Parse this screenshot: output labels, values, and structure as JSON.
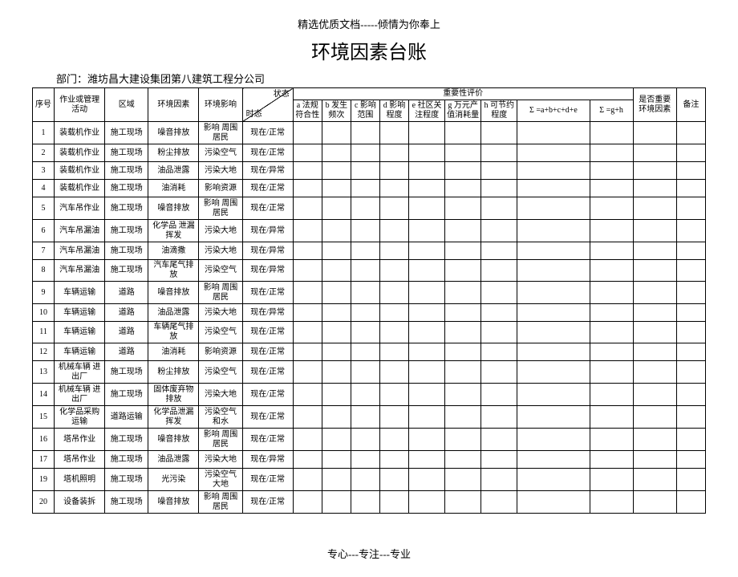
{
  "header_text": "精选优质文档-----倾情为你奉上",
  "title": "环境因素台账",
  "dept_label": "部门：潍坊昌大建设集团第八建筑工程分公司",
  "footer_text": "专心---专注---专业",
  "columns": {
    "seq": "序号",
    "activity": "作业或管理活动",
    "area": "区域",
    "factor": "环境因素",
    "impact": "环境影响",
    "state_top": "状态",
    "state_bottom": "时态",
    "importance": "重要性评价",
    "a": "a\n法规符合性",
    "b": "b\n发生频次",
    "c": "c\n影响范围",
    "d": "d\n影响程度",
    "e": "e\n社区关注程度",
    "g": "g\n万元产值消耗量",
    "h": "h\n可节约程度",
    "sigma1": "Σ\n=a+b+c+d+e",
    "sigma2": "Σ\n=g+h",
    "is_important": "是否重要环境因素",
    "remark": "备注"
  },
  "rows": [
    {
      "n": "1",
      "act": "装载机作业",
      "area": "施工现场",
      "factor": "噪音排放",
      "impact": "影响\n周围居民",
      "state": "现在/正常"
    },
    {
      "n": "2",
      "act": "装载机作业",
      "area": "施工现场",
      "factor": "粉尘排放",
      "impact": "污染空气",
      "state": "现在/正常"
    },
    {
      "n": "3",
      "act": "装载机作业",
      "area": "施工现场",
      "factor": "油品泄露",
      "impact": "污染大地",
      "state": "现在/异常"
    },
    {
      "n": "4",
      "act": "装载机作业",
      "area": "施工现场",
      "factor": "油消耗",
      "impact": "影响资源",
      "state": "现在/正常"
    },
    {
      "n": "5",
      "act": "汽车吊作业",
      "area": "施工现场",
      "factor": "噪音排放",
      "impact": "影响\n周围居民",
      "state": "现在/正常"
    },
    {
      "n": "6",
      "act": "汽车吊漏油",
      "area": "施工现场",
      "factor": "化学品\n泄漏挥发",
      "impact": "污染大地",
      "state": "现在/异常"
    },
    {
      "n": "7",
      "act": "汽车吊漏油",
      "area": "施工现场",
      "factor": "油滴撒",
      "impact": "污染大地",
      "state": "现在/异常"
    },
    {
      "n": "8",
      "act": "汽车吊漏油",
      "area": "施工现场",
      "factor": "汽车尾气排放",
      "impact": "污染空气",
      "state": "现在/异常"
    },
    {
      "n": "9",
      "act": "车辆运输",
      "area": "道路",
      "factor": "噪音排放",
      "impact": "影响\n周围居民",
      "state": "现在/正常"
    },
    {
      "n": "10",
      "act": "车辆运输",
      "area": "道路",
      "factor": "油品泄露",
      "impact": "污染大地",
      "state": "现在/异常"
    },
    {
      "n": "11",
      "act": "车辆运输",
      "area": "道路",
      "factor": "车辆尾气排放",
      "impact": "污染空气",
      "state": "现在/正常"
    },
    {
      "n": "12",
      "act": "车辆运输",
      "area": "道路",
      "factor": "油消耗",
      "impact": "影响资源",
      "state": "现在/正常"
    },
    {
      "n": "13",
      "act": "机械车辆\n进出厂",
      "area": "施工现场",
      "factor": "粉尘排放",
      "impact": "污染空气",
      "state": "现在/正常"
    },
    {
      "n": "14",
      "act": "机械车辆\n进出厂",
      "area": "施工现场",
      "factor": "固体废弃物\n排放",
      "impact": "污染大地",
      "state": "现在/正常"
    },
    {
      "n": "15",
      "act": "化学品采购\n运输",
      "area": "道路运输",
      "factor": "化学品泄漏\n挥发",
      "impact": "污染空气\n和水",
      "state": "现在/正常"
    },
    {
      "n": "16",
      "act": "塔吊作业",
      "area": "施工现场",
      "factor": "噪音排放",
      "impact": "影响\n周围居民",
      "state": "现在/正常"
    },
    {
      "n": "17",
      "act": "塔吊作业",
      "area": "施工现场",
      "factor": "油品泄露",
      "impact": "污染大地",
      "state": "现在/异常"
    },
    {
      "n": "19",
      "act": "塔机照明",
      "area": "施工现场",
      "factor": "光污染",
      "impact": "污染空气\n大地",
      "state": "现在/正常"
    },
    {
      "n": "20",
      "act": "设备装拆",
      "area": "施工现场",
      "factor": "噪音排放",
      "impact": "影响\n周围居民",
      "state": "现在/正常"
    }
  ],
  "col_widths_pct": [
    3,
    7,
    6,
    7,
    6,
    7,
    4,
    4,
    4,
    4,
    5,
    5,
    5,
    10,
    6,
    6,
    4
  ]
}
